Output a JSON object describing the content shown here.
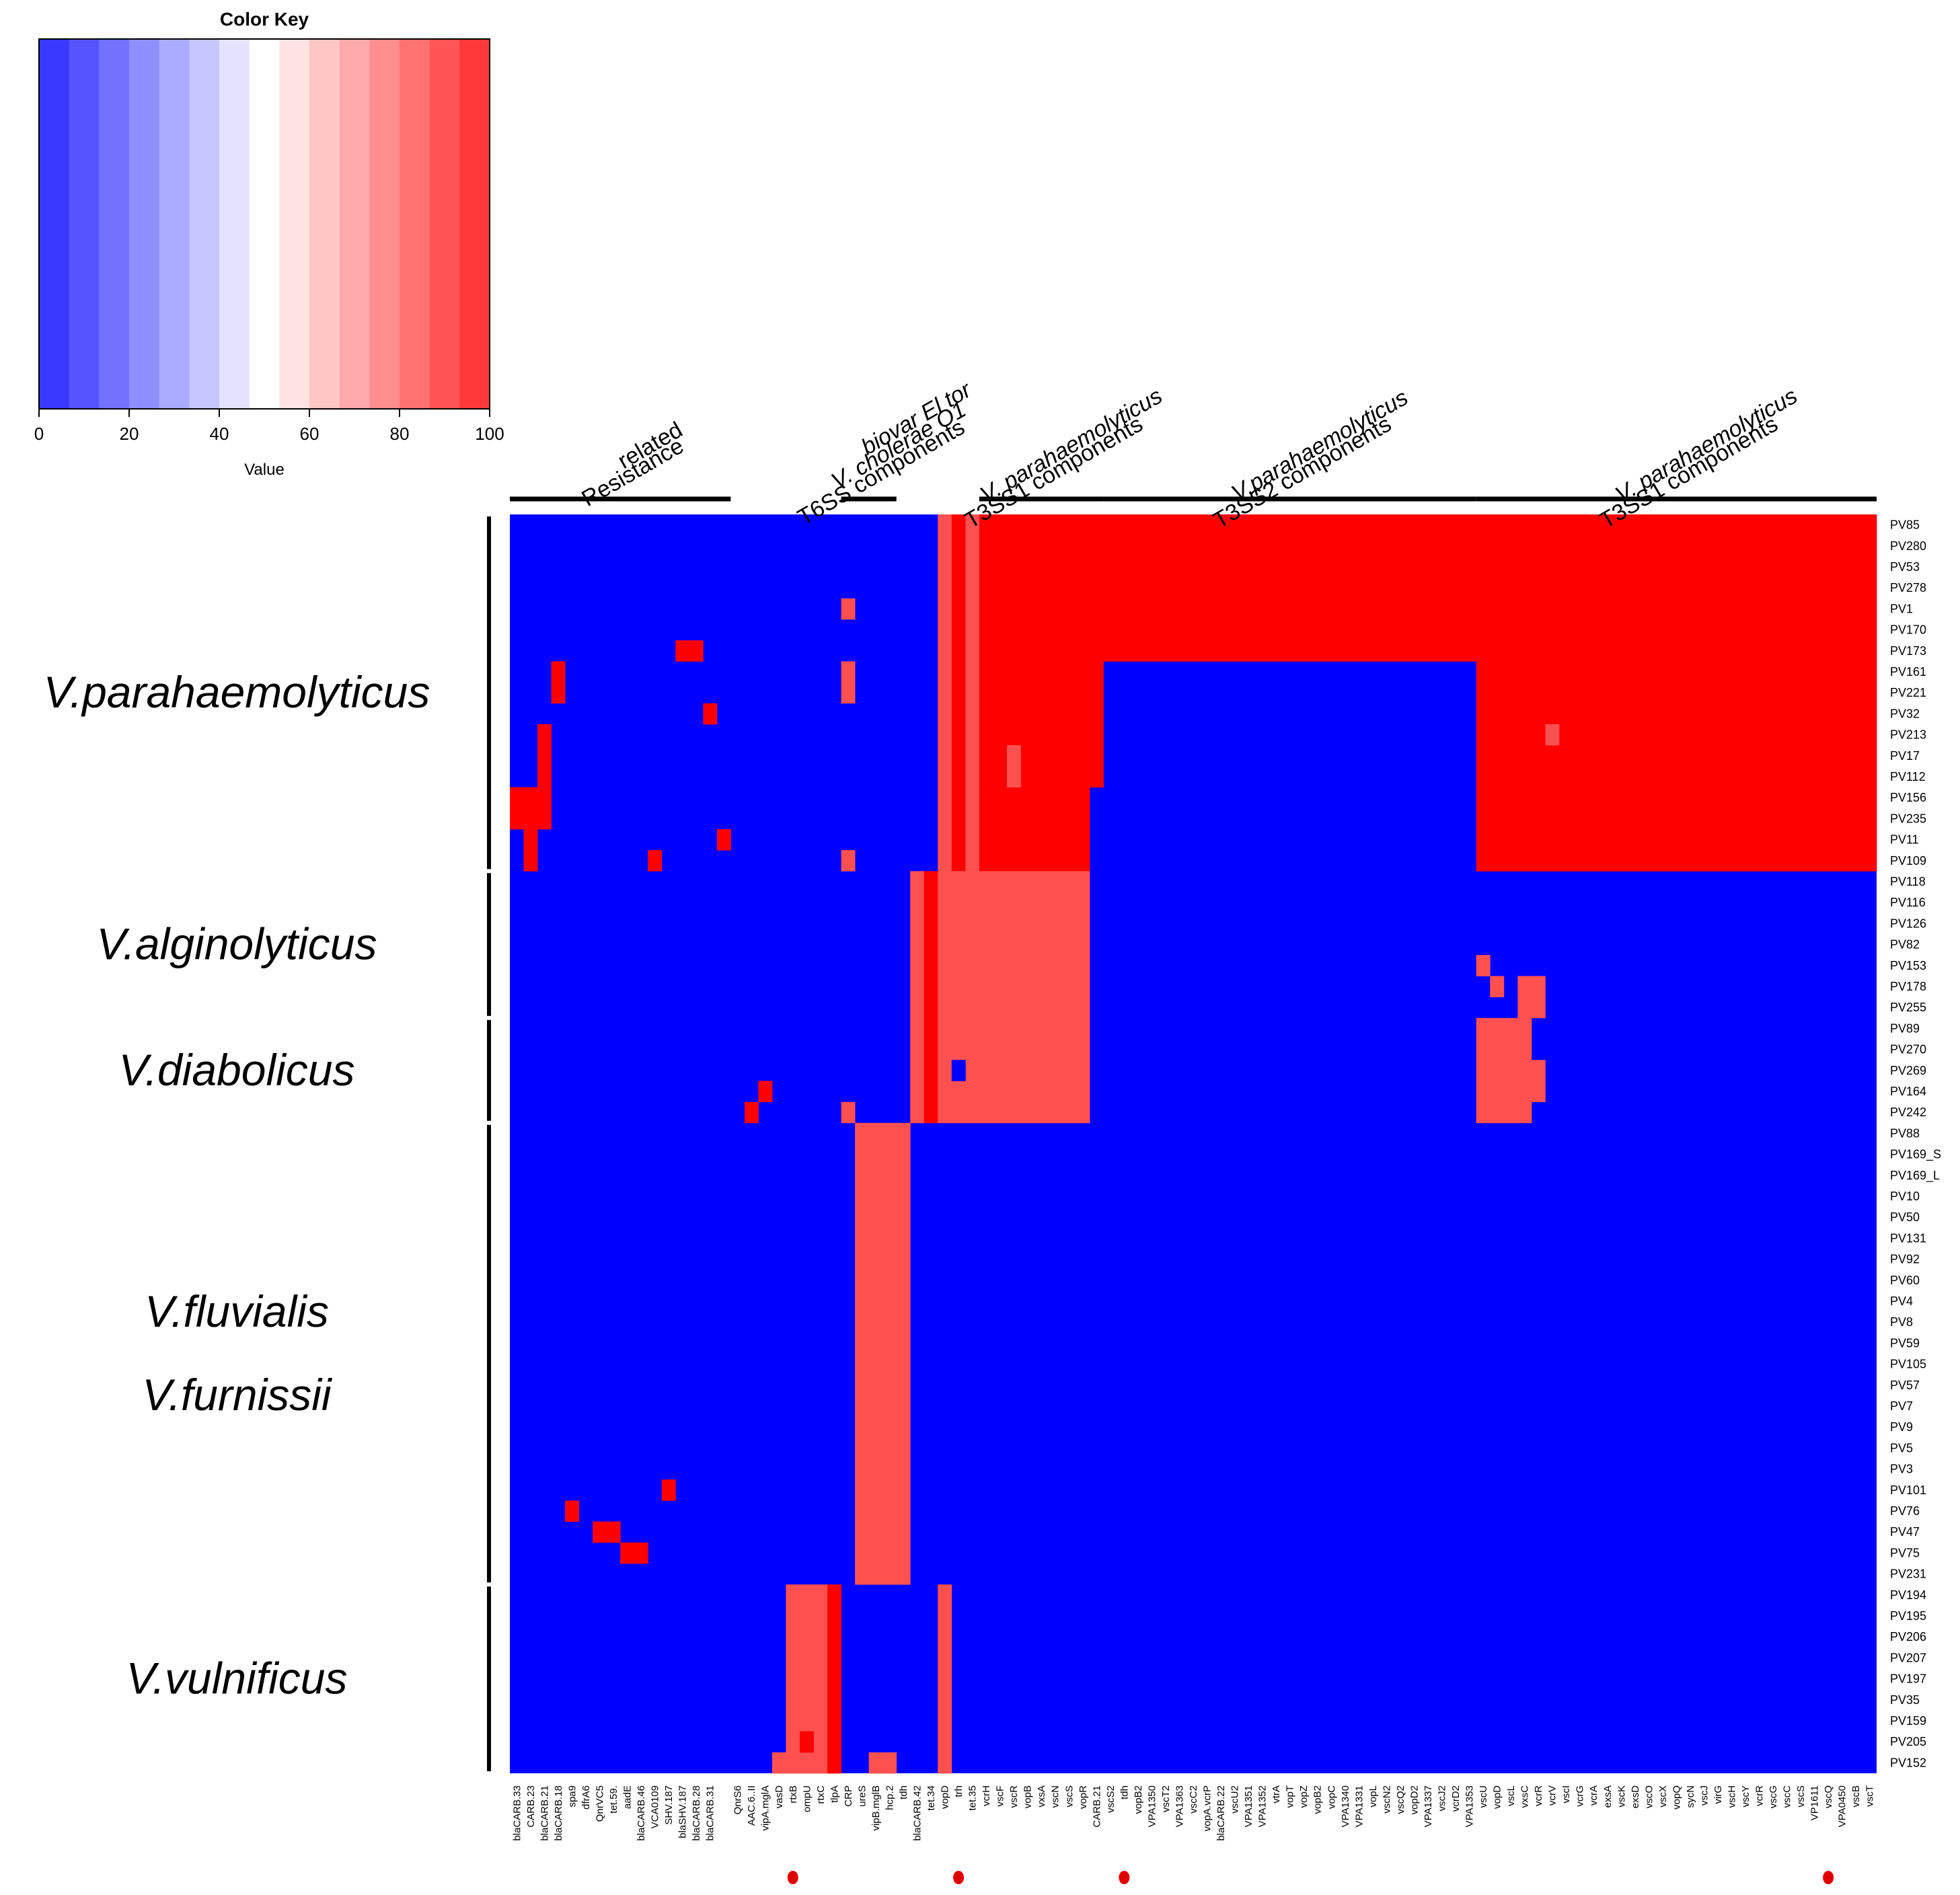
{
  "color_key": {
    "title": "Color Key",
    "ticks": [
      "0",
      "20",
      "40",
      "60",
      "80",
      "100"
    ],
    "xlabel": "Value",
    "range": [
      0,
      100
    ],
    "low_color": "#2b2bff",
    "mid_color": "#ffffff",
    "high_color": "#ff2b2b"
  },
  "chart_data": {
    "type": "heatmap",
    "title": "",
    "xlabel": "",
    "ylabel": "",
    "value_range": [
      0,
      100
    ],
    "colors": {
      "absent": "#0000ff",
      "present": "#ff0000",
      "partial": "#ff5050"
    },
    "columns": [
      "blaCARB.33",
      "CARB.23",
      "blaCARB.21",
      "blaCARB.18",
      "spa9",
      "dfrA6",
      "QnrVC5",
      "tet.59.",
      "aadE",
      "blaCARB.46",
      "VCA0109",
      "SHV.187",
      "blaSHV.187",
      "blaCARB.28",
      "blaCARB.31",
      "",
      "QnrS6",
      "AAC.6..II",
      "vipA.mglA",
      "vasD",
      "rtxB",
      "ompU",
      "rtxC",
      "tlpA",
      "CRP",
      "ureS",
      "vipB.mglB",
      "hcp.2",
      "tdh",
      "blaCARB.42",
      "tet.34",
      "vopD",
      "trh",
      "tet.35",
      "vcrH",
      "vscF",
      "vscR",
      "vopB",
      "vxsA",
      "vscN",
      "vscS",
      "vopR",
      "CARB.21",
      "vscS2",
      "tdh",
      "vopB2",
      "VPA1350",
      "vscT2",
      "VPA1363",
      "vscC2",
      "vopA.vcrP",
      "blaCARB.22",
      "vscU2",
      "VPA1351",
      "VPA1352",
      "vtrA",
      "vopT",
      "vopZ",
      "vopB2",
      "vopC",
      "VPA1340",
      "VPA1331",
      "vopL",
      "vscN2",
      "vscQ2",
      "vopD2",
      "VPA1337",
      "vscJ2",
      "vcrD2",
      "VPA1353",
      "vscU",
      "vopD",
      "vscL",
      "vxsC",
      "vcrR",
      "vcrV",
      "vscI",
      "vcrG",
      "vcrA",
      "exsA",
      "vscK",
      "exsD",
      "vscO",
      "vscX",
      "vopQ",
      "sycN",
      "vscJ",
      "virG",
      "vscH",
      "vscY",
      "vcrR",
      "vscG",
      "vscC",
      "vscS",
      "VP1611",
      "vscQ",
      "VPA0450",
      "vscB",
      "vscT"
    ],
    "rows": [
      "PV85",
      "PV280",
      "PV53",
      "PV278",
      "PV1",
      "PV170",
      "PV173",
      "PV161",
      "PV221",
      "PV32",
      "PV213",
      "PV17",
      "PV112",
      "PV156",
      "PV235",
      "PV11",
      "PV109",
      "PV118",
      "PV116",
      "PV126",
      "PV82",
      "PV153",
      "PV178",
      "PV255",
      "PV89",
      "PV270",
      "PV269",
      "PV164",
      "PV242",
      "PV88",
      "PV169_S",
      "PV169_L",
      "PV10",
      "PV50",
      "PV131",
      "PV92",
      "PV60",
      "PV4",
      "PV8",
      "PV59",
      "PV105",
      "PV57",
      "PV7",
      "PV9",
      "PV5",
      "PV3",
      "PV101",
      "PV76",
      "PV47",
      "PV75",
      "PV231",
      "PV194",
      "PV195",
      "PV206",
      "PV207",
      "PV197",
      "PV35",
      "PV159",
      "PV205",
      "PV152"
    ],
    "cells": [
      {
        "rows": [
          0,
          16
        ],
        "cols": [
          31,
          31
        ],
        "value": 90
      },
      {
        "rows": [
          0,
          16
        ],
        "cols": [
          32,
          32
        ],
        "value": 100
      },
      {
        "rows": [
          0,
          16
        ],
        "cols": [
          33,
          33
        ],
        "value": 85
      },
      {
        "rows": [
          0,
          16
        ],
        "cols": [
          34,
          34
        ],
        "value": 100
      },
      {
        "rows": [
          0,
          12
        ],
        "cols": [
          35,
          42
        ],
        "value": 100
      },
      {
        "rows": [
          0,
          6
        ],
        "cols": [
          43,
          69
        ],
        "value": 100
      },
      {
        "rows": [
          0,
          16
        ],
        "cols": [
          70,
          98
        ],
        "value": 100
      },
      {
        "rows": [
          13,
          16
        ],
        "cols": [
          35,
          41
        ],
        "value": 100
      },
      {
        "rows": [
          17,
          28
        ],
        "cols": [
          29,
          29
        ],
        "value": 90
      },
      {
        "rows": [
          17,
          28
        ],
        "cols": [
          30,
          30
        ],
        "value": 100
      },
      {
        "rows": [
          17,
          28
        ],
        "cols": [
          31,
          41
        ],
        "value": 90
      },
      {
        "rows": [
          29,
          50
        ],
        "cols": [
          25,
          28
        ],
        "value": 90
      },
      {
        "rows": [
          28,
          28
        ],
        "cols": [
          24,
          24
        ],
        "value": 90
      },
      {
        "rows": [
          51,
          59
        ],
        "cols": [
          20,
          22
        ],
        "value": 90
      },
      {
        "rows": [
          51,
          59
        ],
        "cols": [
          23,
          23
        ],
        "value": 100
      },
      {
        "rows": [
          51,
          59
        ],
        "cols": [
          31,
          31
        ],
        "value": 90
      },
      {
        "rows": [
          59,
          59
        ],
        "cols": [
          19,
          19
        ],
        "value": 90
      },
      {
        "rows": [
          59,
          59
        ],
        "cols": [
          26,
          27
        ],
        "value": 90
      },
      {
        "rows": [
          58,
          58
        ],
        "cols": [
          21,
          21
        ],
        "value": 100
      },
      {
        "rows": [
          4,
          4
        ],
        "cols": [
          24,
          24
        ],
        "value": 90
      },
      {
        "rows": [
          7,
          8
        ],
        "cols": [
          24,
          24
        ],
        "value": 90
      },
      {
        "rows": [
          16,
          16
        ],
        "cols": [
          24,
          24
        ],
        "value": 90
      },
      {
        "rows": [
          6,
          6
        ],
        "cols": [
          12,
          13
        ],
        "value": 100
      },
      {
        "rows": [
          7,
          8
        ],
        "cols": [
          3,
          3
        ],
        "value": 100
      },
      {
        "rows": [
          9,
          9
        ],
        "cols": [
          14,
          14
        ],
        "value": 100
      },
      {
        "rows": [
          10,
          14
        ],
        "cols": [
          2,
          2
        ],
        "value": 100
      },
      {
        "rows": [
          13,
          14
        ],
        "cols": [
          0,
          1
        ],
        "value": 100
      },
      {
        "rows": [
          15,
          16
        ],
        "cols": [
          1,
          1
        ],
        "value": 100
      },
      {
        "rows": [
          15,
          15
        ],
        "cols": [
          15,
          15
        ],
        "value": 100
      },
      {
        "rows": [
          16,
          16
        ],
        "cols": [
          10,
          10
        ],
        "value": 100
      },
      {
        "rows": [
          10,
          10
        ],
        "cols": [
          75,
          75
        ],
        "value": 85
      },
      {
        "rows": [
          11,
          12
        ],
        "cols": [
          36,
          36
        ],
        "value": 90
      },
      {
        "rows": [
          26,
          26
        ],
        "cols": [
          32,
          32
        ],
        "value": 0
      },
      {
        "rows": [
          21,
          21
        ],
        "cols": [
          70,
          70
        ],
        "value": 90
      },
      {
        "rows": [
          22,
          22
        ],
        "cols": [
          71,
          71
        ],
        "value": 90
      },
      {
        "rows": [
          22,
          23
        ],
        "cols": [
          73,
          74
        ],
        "value": 90
      },
      {
        "rows": [
          24,
          28
        ],
        "cols": [
          70,
          73
        ],
        "value": 90
      },
      {
        "rows": [
          26,
          27
        ],
        "cols": [
          74,
          74
        ],
        "value": 90
      },
      {
        "rows": [
          27,
          27
        ],
        "cols": [
          18,
          18
        ],
        "value": 100
      },
      {
        "rows": [
          28,
          28
        ],
        "cols": [
          17,
          17
        ],
        "value": 100
      },
      {
        "rows": [
          46,
          46
        ],
        "cols": [
          11,
          11
        ],
        "value": 100
      },
      {
        "rows": [
          47,
          47
        ],
        "cols": [
          4,
          4
        ],
        "value": 100
      },
      {
        "rows": [
          48,
          48
        ],
        "cols": [
          6,
          7
        ],
        "value": 100
      },
      {
        "rows": [
          49,
          49
        ],
        "cols": [
          8,
          9
        ],
        "value": 100
      }
    ],
    "column_groups": [
      {
        "lines": [
          "Resistance",
          "related"
        ],
        "italic": [
          false,
          false
        ],
        "cols": [
          0,
          15
        ]
      },
      {
        "lines": [
          "T6SS components",
          "V. cholerae O1",
          "biovar El tor"
        ],
        "italic": [
          false,
          true,
          true
        ],
        "cols": [
          24,
          27
        ]
      },
      {
        "lines": [
          "T3SS1 components",
          "V. parahaemolyticus"
        ],
        "italic": [
          false,
          true
        ],
        "cols": [
          34,
          42
        ]
      },
      {
        "lines": [
          "T3SS2 components",
          "V.parahaemolyticus"
        ],
        "italic": [
          false,
          true
        ],
        "cols": [
          43,
          69
        ]
      },
      {
        "lines": [
          "T3SS1 components",
          "V. parahaemolyticus"
        ],
        "italic": [
          false,
          true
        ],
        "cols": [
          70,
          98
        ]
      }
    ],
    "row_groups": [
      {
        "labels": [
          "V.parahaemolyticus"
        ],
        "rows": [
          0,
          16
        ]
      },
      {
        "labels": [
          "V.alginolyticus"
        ],
        "rows": [
          17,
          23
        ]
      },
      {
        "labels": [
          "V.diabolicus"
        ],
        "rows": [
          24,
          28
        ]
      },
      {
        "labels": [
          "V.fluvialis",
          "V.furnissii"
        ],
        "rows": [
          29,
          50
        ]
      },
      {
        "labels": [
          "V.vulnificus"
        ],
        "rows": [
          51,
          59
        ]
      }
    ],
    "marked_columns": [
      20,
      32,
      44,
      95
    ]
  }
}
